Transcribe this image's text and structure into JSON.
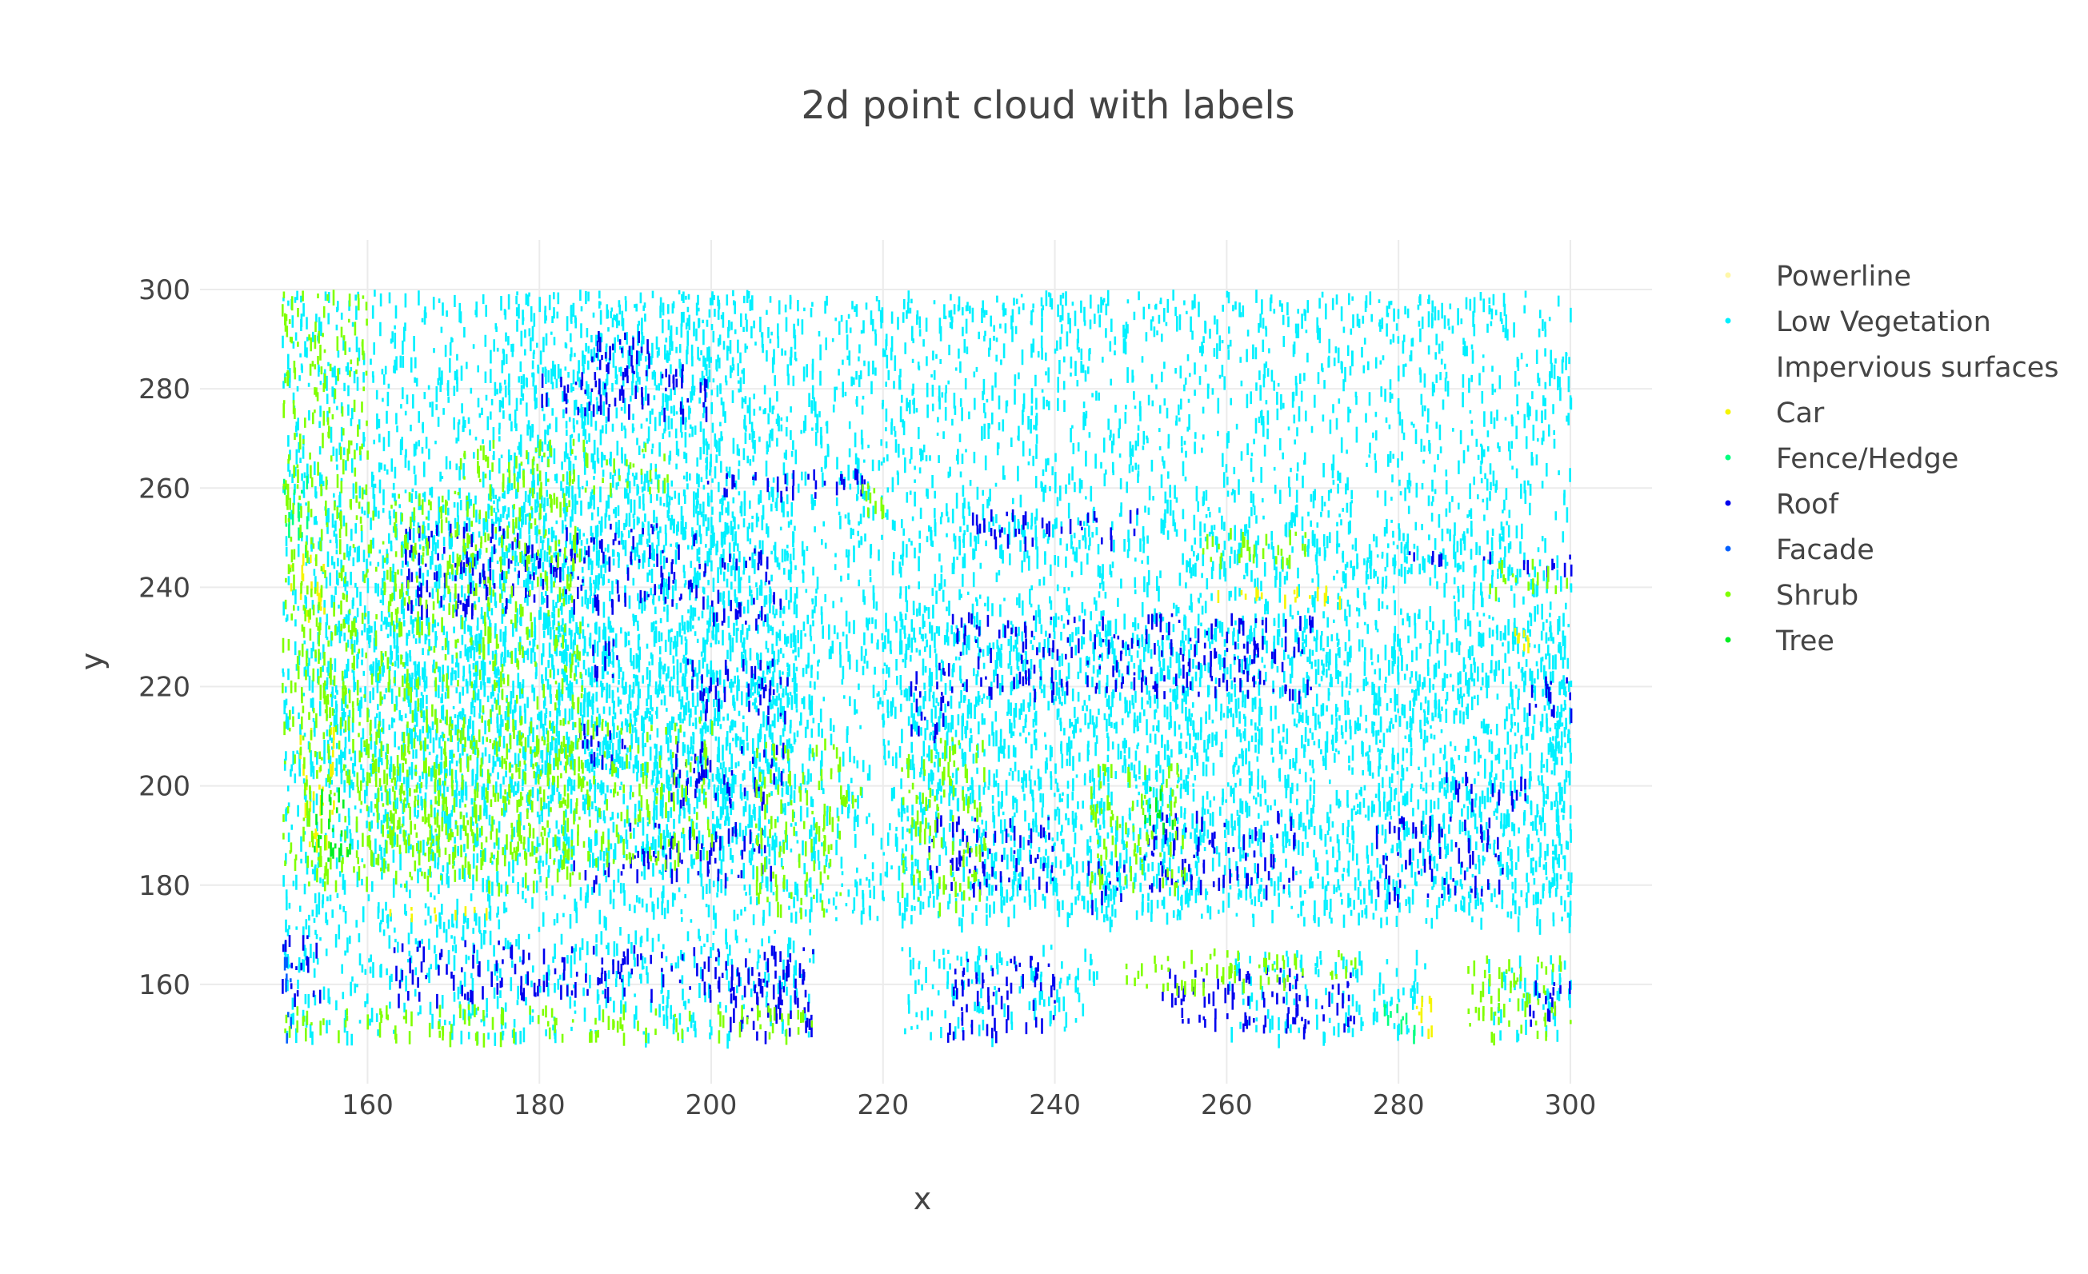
{
  "chart_data": {
    "type": "scatter",
    "title": "2d point cloud with labels",
    "xlabel": "x",
    "ylabel": "y",
    "xlim": [
      140.5,
      309.5
    ],
    "ylim": [
      140,
      310
    ],
    "xticks": [
      160,
      180,
      200,
      220,
      240,
      260,
      280,
      300
    ],
    "yticks": [
      160,
      180,
      200,
      220,
      240,
      260,
      280,
      300
    ],
    "grid": true,
    "legend_position": "right",
    "series": [
      {
        "name": "Powerline",
        "color": "#fff7a8",
        "regions": []
      },
      {
        "name": "Low Vegetation",
        "color": "#00f0ff",
        "regions": [
          [
            150,
            300,
            173,
            300
          ],
          [
            155,
            210,
            200,
            260
          ],
          [
            175,
            205,
            245,
            300
          ],
          [
            160,
            212,
            186,
            234
          ],
          [
            150,
            175,
            150,
            175
          ],
          [
            174,
            212,
            150,
            172
          ],
          [
            222,
            232,
            176,
            240
          ],
          [
            232,
            300,
            176,
            235
          ],
          [
            296,
            300,
            173,
            222
          ],
          [
            255,
            293,
            243,
            252
          ],
          [
            225,
            245,
            246,
            256
          ],
          [
            260,
            283,
            150,
            167
          ],
          [
            290,
            300,
            150,
            166
          ],
          [
            222,
            245,
            150,
            168
          ]
        ]
      },
      {
        "name": "Impervious surfaces",
        "color": "#ffffff",
        "regions": []
      },
      {
        "name": "Car",
        "color": "#f5f500",
        "regions": [
          [
            151,
            155,
            235,
            250
          ],
          [
            152,
            156,
            188,
            212
          ],
          [
            282,
            284,
            151,
            158
          ],
          [
            293,
            295,
            228,
            232
          ],
          [
            160,
            175,
            174,
            176
          ],
          [
            258,
            275,
            238,
            241
          ]
        ]
      },
      {
        "name": "Fence/Hedge",
        "color": "#00ff80",
        "regions": [
          [
            150,
            153,
            248,
            265
          ],
          [
            278,
            282,
            150,
            158
          ]
        ]
      },
      {
        "name": "Roof",
        "color": "#0000ee",
        "regions": [
          [
            186,
            193,
            276,
            292
          ],
          [
            180,
            200,
            276,
            285
          ],
          [
            198,
            218,
            259,
            264
          ],
          [
            164,
            200,
            236,
            253
          ],
          [
            200,
            208,
            233,
            248
          ],
          [
            186,
            190,
            222,
            230
          ],
          [
            197,
            209,
            214,
            226
          ],
          [
            184,
            190,
            206,
            214
          ],
          [
            195,
            209,
            197,
            209
          ],
          [
            190,
            207,
            182,
            193
          ],
          [
            183,
            190,
            181,
            185
          ],
          [
            150,
            155,
            158,
            170
          ],
          [
            163,
            176,
            158,
            169
          ],
          [
            176,
            210,
            158,
            168
          ],
          [
            202,
            212,
            150,
            168
          ],
          [
            228,
            270,
            219,
            235
          ],
          [
            223,
            228,
            210,
            225
          ],
          [
            225,
            240,
            180,
            195
          ],
          [
            243,
            248,
            177,
            185
          ],
          [
            250,
            268,
            180,
            195
          ],
          [
            277,
            292,
            178,
            194
          ],
          [
            227,
            240,
            150,
            166
          ],
          [
            252,
            275,
            151,
            164
          ],
          [
            295,
            300,
            151,
            161
          ],
          [
            295,
            300,
            215,
            224
          ],
          [
            285,
            295,
            197,
            203
          ],
          [
            230,
            250,
            250,
            256
          ],
          [
            280,
            292,
            246,
            248
          ],
          [
            294,
            300,
            244,
            247
          ]
        ]
      },
      {
        "name": "Facade",
        "color": "#0060ff",
        "regions": [
          [
            150,
            151,
            150,
            170
          ]
        ]
      },
      {
        "name": "Shrub",
        "color": "#80ff00",
        "regions": [
          [
            150,
            185,
            180,
            260
          ],
          [
            160,
            200,
            185,
            214
          ],
          [
            150,
            160,
            260,
            300
          ],
          [
            170,
            195,
            260,
            270
          ],
          [
            205,
            215,
            175,
            210
          ],
          [
            216,
            220,
            254,
            262
          ],
          [
            215,
            218,
            197,
            200
          ],
          [
            222,
            232,
            176,
            210
          ],
          [
            244,
            255,
            180,
            205
          ],
          [
            256,
            270,
            245,
            252
          ],
          [
            290,
            300,
            240,
            246
          ],
          [
            248,
            275,
            160,
            168
          ],
          [
            288,
            300,
            150,
            166
          ],
          [
            150,
            212,
            150,
            156
          ]
        ]
      },
      {
        "name": "Tree",
        "color": "#00ee22",
        "regions": [
          [
            153,
            158,
            185,
            200
          ],
          [
            250,
            254,
            192,
            200
          ]
        ]
      }
    ]
  }
}
